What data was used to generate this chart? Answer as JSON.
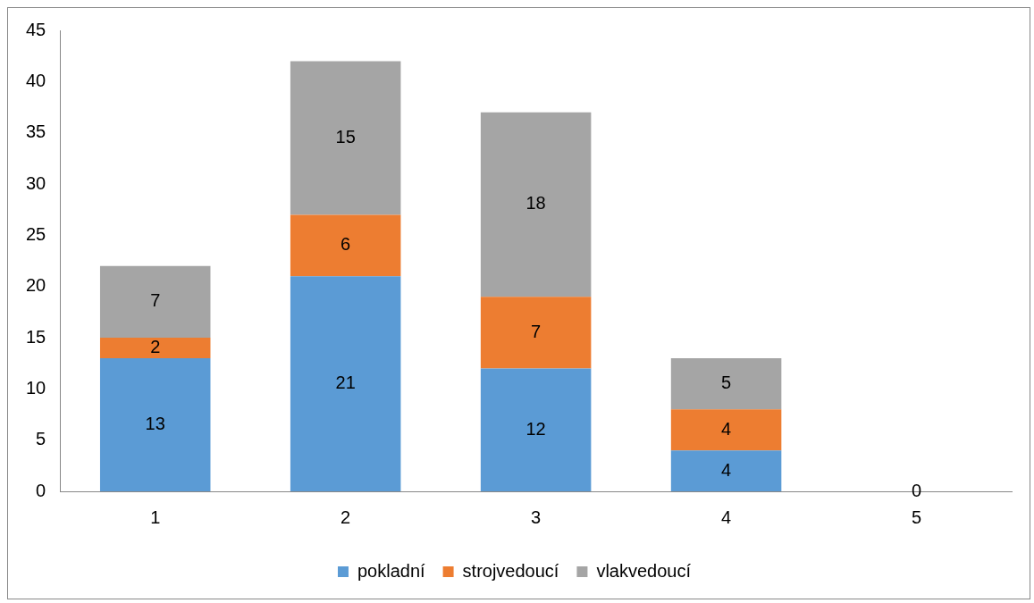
{
  "chart_data": {
    "type": "bar",
    "stacked": true,
    "categories": [
      "1",
      "2",
      "3",
      "4",
      "5"
    ],
    "series": [
      {
        "name": "pokladní",
        "color": "#5b9bd5",
        "values": [
          13,
          21,
          12,
          4,
          0
        ],
        "value_labels": [
          "13",
          "21",
          "12",
          "4",
          "0"
        ]
      },
      {
        "name": "strojvedoucí",
        "color": "#ed7d31",
        "values": [
          2,
          6,
          7,
          4,
          0
        ],
        "value_labels": [
          "2",
          "6",
          "7",
          "4",
          null
        ]
      },
      {
        "name": "vlakvedoucí",
        "color": "#a5a5a5",
        "values": [
          7,
          15,
          18,
          5,
          0
        ],
        "value_labels": [
          "7",
          "15",
          "18",
          "5",
          null
        ]
      }
    ],
    "ylim": [
      0,
      45
    ],
    "yticks": [
      0,
      5,
      10,
      15,
      20,
      25,
      30,
      35,
      40,
      45
    ],
    "grid": false,
    "legend": "bottom"
  }
}
